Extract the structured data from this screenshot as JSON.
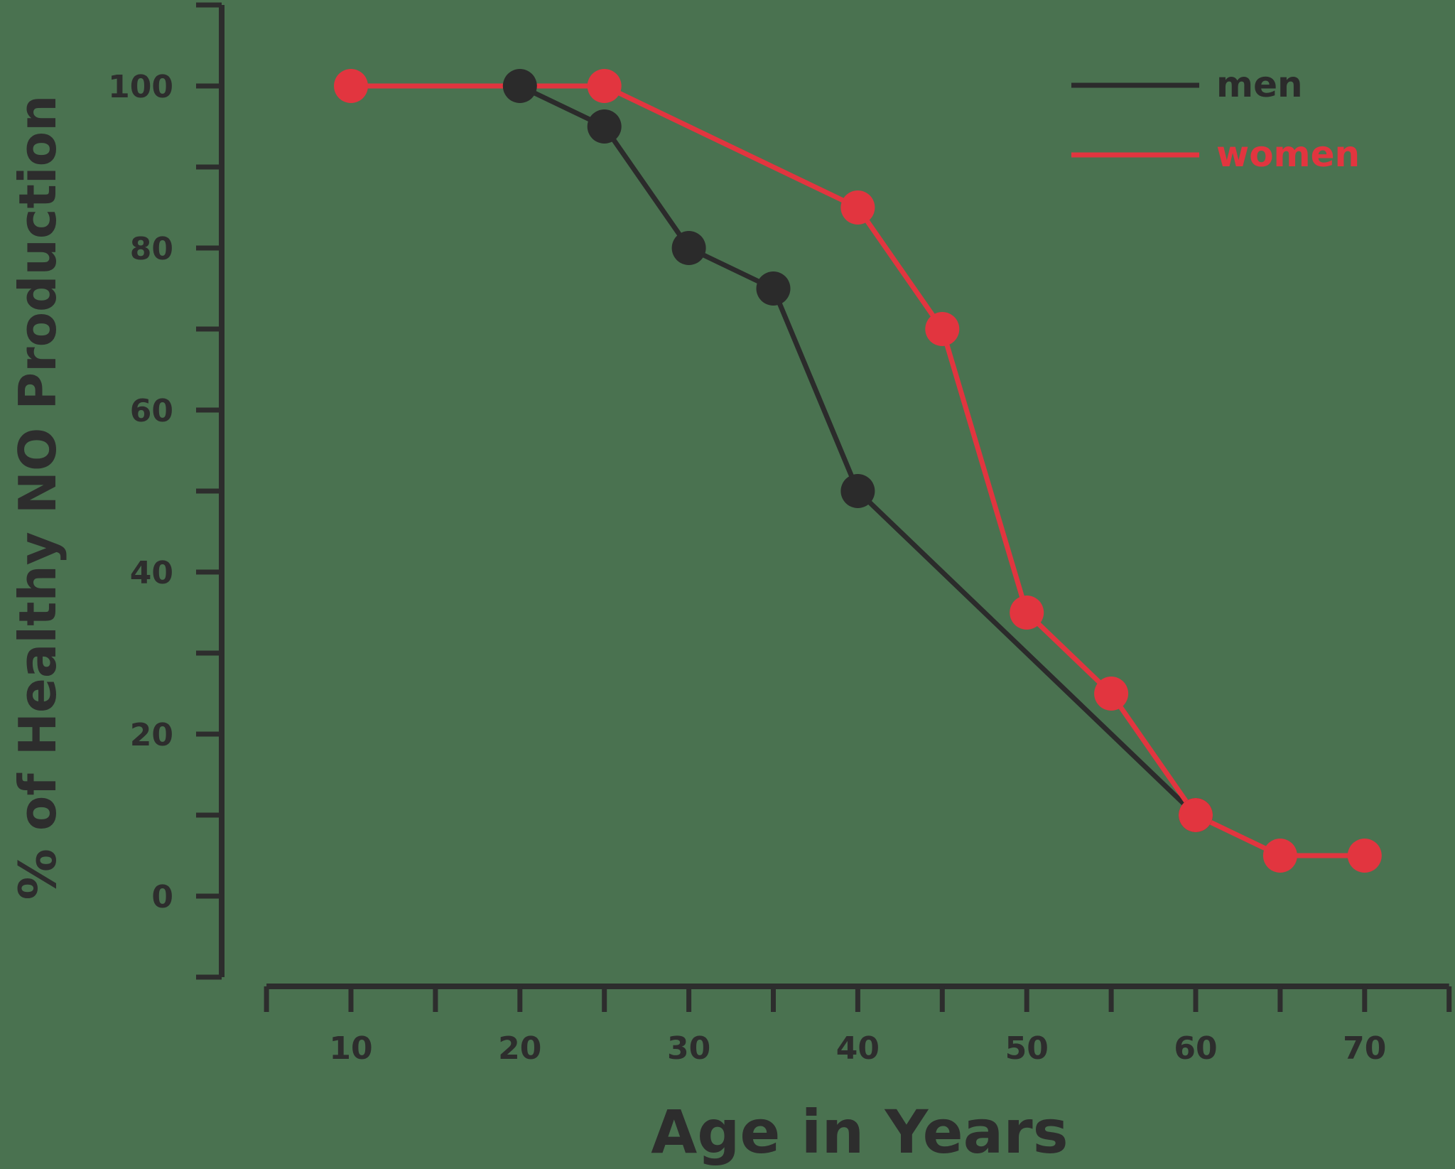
{
  "chart_data": {
    "type": "line",
    "xlabel": "Age in Years",
    "ylabel": "% of Healthy NO Production",
    "xlim": [
      5,
      75
    ],
    "ylim": [
      -10,
      110
    ],
    "x_ticks": [
      10,
      20,
      30,
      40,
      50,
      60,
      70
    ],
    "y_ticks": [
      0,
      20,
      40,
      60,
      80,
      100
    ],
    "legend_position": "top-right",
    "grid": false,
    "series": [
      {
        "name": "men",
        "color": "#2b2b2b",
        "points": [
          {
            "x": 20,
            "y": 100
          },
          {
            "x": 25,
            "y": 95
          },
          {
            "x": 30,
            "y": 80
          },
          {
            "x": 35,
            "y": 75
          },
          {
            "x": 40,
            "y": 50
          },
          {
            "x": 60,
            "y": 10
          }
        ]
      },
      {
        "name": "women",
        "color": "#e2353f",
        "points": [
          {
            "x": 10,
            "y": 100
          },
          {
            "x": 25,
            "y": 100
          },
          {
            "x": 40,
            "y": 85
          },
          {
            "x": 45,
            "y": 70
          },
          {
            "x": 50,
            "y": 35
          },
          {
            "x": 55,
            "y": 25
          },
          {
            "x": 60,
            "y": 10
          },
          {
            "x": 65,
            "y": 5
          },
          {
            "x": 70,
            "y": 5
          }
        ]
      }
    ]
  }
}
